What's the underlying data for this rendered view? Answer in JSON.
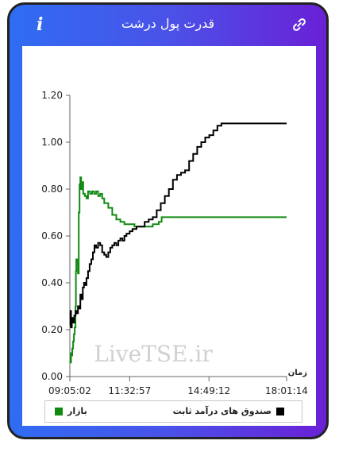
{
  "header": {
    "title": "قدرت پول درشت",
    "info_icon": "info-icon",
    "link_icon": "link-icon"
  },
  "colors": {
    "market": "#118a11",
    "fixed_income": "#000000",
    "gradient_start": "#2f6df2",
    "gradient_end": "#6a20d6"
  },
  "watermark": "LiveTSE.ir",
  "chart_data": {
    "type": "line",
    "title": "",
    "xlabel": "زمان",
    "ylabel": "",
    "x_ticks": [
      "09:05:02",
      "11:32:57",
      "14:49:12",
      "18:01:14"
    ],
    "y_ticks": [
      "0.00",
      "0.20",
      "0.40",
      "0.60",
      "0.80",
      "1.00",
      "1.20"
    ],
    "ylim": [
      0,
      1.2
    ],
    "grid": false,
    "legend_position": "bottom",
    "series": [
      {
        "name": "بازار",
        "color": "#118a11",
        "points": [
          [
            "09:05:02",
            0.08
          ],
          [
            "09:06:30",
            0.06
          ],
          [
            "09:08:00",
            0.1
          ],
          [
            "09:09:30",
            0.09
          ],
          [
            "09:11:00",
            0.12
          ],
          [
            "09:13:00",
            0.15
          ],
          [
            "09:15:00",
            0.18
          ],
          [
            "09:17:00",
            0.21
          ],
          [
            "09:19:00",
            0.3
          ],
          [
            "09:20:00",
            0.45
          ],
          [
            "09:21:00",
            0.5
          ],
          [
            "09:23:00",
            0.48
          ],
          [
            "09:25:00",
            0.44
          ],
          [
            "09:27:00",
            0.7
          ],
          [
            "09:29:00",
            0.82
          ],
          [
            "09:31:00",
            0.85
          ],
          [
            "09:33:00",
            0.8
          ],
          [
            "09:35:00",
            0.83
          ],
          [
            "09:38:00",
            0.78
          ],
          [
            "09:42:00",
            0.77
          ],
          [
            "09:46:00",
            0.76
          ],
          [
            "09:50:00",
            0.79
          ],
          [
            "09:55:00",
            0.78
          ],
          [
            "10:00:00",
            0.79
          ],
          [
            "10:05:00",
            0.78
          ],
          [
            "10:10:00",
            0.79
          ],
          [
            "10:15:00",
            0.77
          ],
          [
            "10:20:00",
            0.78
          ],
          [
            "10:25:00",
            0.76
          ],
          [
            "10:30:00",
            0.74
          ],
          [
            "10:40:00",
            0.72
          ],
          [
            "10:50:00",
            0.69
          ],
          [
            "11:00:00",
            0.67
          ],
          [
            "11:10:00",
            0.66
          ],
          [
            "11:20:00",
            0.65
          ],
          [
            "11:32:57",
            0.65
          ],
          [
            "11:45:00",
            0.64
          ],
          [
            "12:00:00",
            0.64
          ],
          [
            "12:15:00",
            0.64
          ],
          [
            "12:30:00",
            0.65
          ],
          [
            "12:45:00",
            0.66
          ],
          [
            "12:52:00",
            0.68
          ],
          [
            "13:30:00",
            0.68
          ],
          [
            "14:49:12",
            0.68
          ],
          [
            "18:01:14",
            0.68
          ]
        ]
      },
      {
        "name": "صندوق های درآمد ثابت",
        "color": "#000000",
        "points": [
          [
            "09:05:02",
            0.22
          ],
          [
            "09:06:30",
            0.28
          ],
          [
            "09:08:00",
            0.21
          ],
          [
            "09:10:00",
            0.25
          ],
          [
            "09:13:00",
            0.23
          ],
          [
            "09:16:00",
            0.26
          ],
          [
            "09:19:00",
            0.28
          ],
          [
            "09:22:00",
            0.27
          ],
          [
            "09:25:00",
            0.3
          ],
          [
            "09:28:00",
            0.29
          ],
          [
            "09:31:00",
            0.35
          ],
          [
            "09:34:00",
            0.33
          ],
          [
            "09:37:00",
            0.38
          ],
          [
            "09:40:00",
            0.4
          ],
          [
            "09:43:00",
            0.39
          ],
          [
            "09:46:00",
            0.42
          ],
          [
            "09:50:00",
            0.45
          ],
          [
            "09:54:00",
            0.48
          ],
          [
            "09:58:00",
            0.5
          ],
          [
            "10:02:00",
            0.53
          ],
          [
            "10:06:00",
            0.56
          ],
          [
            "10:10:00",
            0.55
          ],
          [
            "10:15:00",
            0.57
          ],
          [
            "10:20:00",
            0.56
          ],
          [
            "10:25:00",
            0.53
          ],
          [
            "10:30:00",
            0.52
          ],
          [
            "10:35:00",
            0.51
          ],
          [
            "10:40:00",
            0.53
          ],
          [
            "10:45:00",
            0.55
          ],
          [
            "10:50:00",
            0.56
          ],
          [
            "10:55:00",
            0.57
          ],
          [
            "11:00:00",
            0.56
          ],
          [
            "11:05:00",
            0.58
          ],
          [
            "11:10:00",
            0.59
          ],
          [
            "11:15:00",
            0.58
          ],
          [
            "11:20:00",
            0.6
          ],
          [
            "11:25:00",
            0.61
          ],
          [
            "11:32:57",
            0.62
          ],
          [
            "11:40:00",
            0.63
          ],
          [
            "11:50:00",
            0.64
          ],
          [
            "12:00:00",
            0.64
          ],
          [
            "12:10:00",
            0.66
          ],
          [
            "12:20:00",
            0.67
          ],
          [
            "12:30:00",
            0.68
          ],
          [
            "12:40:00",
            0.71
          ],
          [
            "12:50:00",
            0.74
          ],
          [
            "13:00:00",
            0.77
          ],
          [
            "13:10:00",
            0.8
          ],
          [
            "13:20:00",
            0.84
          ],
          [
            "13:30:00",
            0.86
          ],
          [
            "13:40:00",
            0.87
          ],
          [
            "13:50:00",
            0.88
          ],
          [
            "14:00:00",
            0.92
          ],
          [
            "14:10:00",
            0.95
          ],
          [
            "14:20:00",
            0.98
          ],
          [
            "14:30:00",
            1.0
          ],
          [
            "14:40:00",
            1.02
          ],
          [
            "14:50:00",
            1.03
          ],
          [
            "15:00:00",
            1.05
          ],
          [
            "15:10:00",
            1.07
          ],
          [
            "15:20:00",
            1.08
          ],
          [
            "15:30:00",
            1.08
          ],
          [
            "16:00:00",
            1.08
          ],
          [
            "17:00:00",
            1.08
          ],
          [
            "18:01:14",
            1.08
          ]
        ]
      }
    ]
  }
}
